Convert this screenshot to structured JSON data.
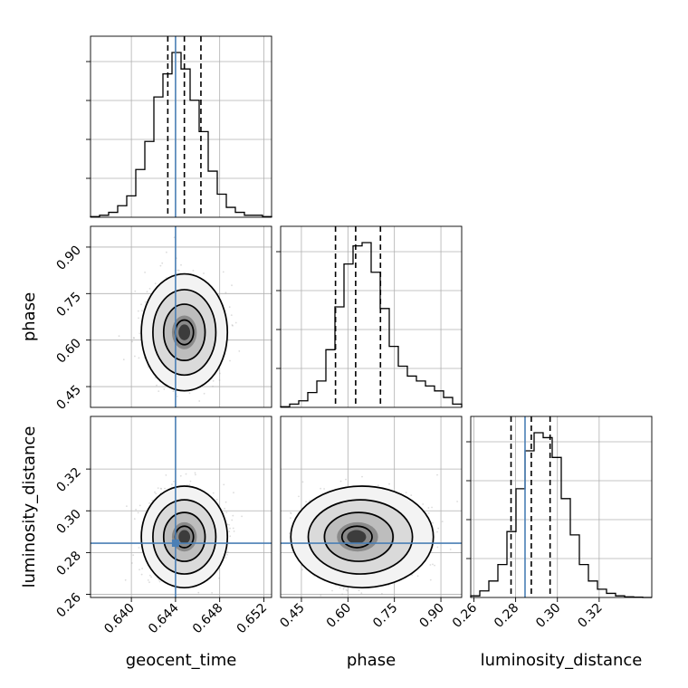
{
  "chart_data": {
    "type": "corner",
    "parameters": [
      "geocent_time",
      "phase",
      "luminosity_distance"
    ],
    "ranges": {
      "geocent_time": [
        0.6363,
        0.6527
      ],
      "phase": [
        0.383,
        0.967
      ],
      "luminosity_distance": [
        0.2585,
        0.3452
      ]
    },
    "truths": {
      "geocent_time": 0.644,
      "phase": null,
      "luminosity_distance": 0.2845
    },
    "quantiles": {
      "geocent_time": [
        0.6433,
        0.6448,
        0.6463
      ],
      "phase": [
        0.56,
        0.625,
        0.705
      ],
      "luminosity_distance": [
        0.2778,
        0.2875,
        0.2965
      ]
    },
    "ticks": {
      "geocent_time": [
        "0.640",
        "0.644",
        "0.648",
        "0.652"
      ],
      "phase": [
        "0.45",
        "0.60",
        "0.75",
        "0.90"
      ],
      "luminosity_distance": [
        "0.26",
        "0.28",
        "0.30",
        "0.32"
      ]
    },
    "histograms": {
      "geocent_time": [
        0.004,
        0.012,
        0.03,
        0.07,
        0.13,
        0.29,
        0.46,
        0.73,
        0.87,
        1.0,
        0.9,
        0.71,
        0.52,
        0.28,
        0.14,
        0.06,
        0.03,
        0.012,
        0.012,
        0.004
      ],
      "phase": [
        0.004,
        0.02,
        0.04,
        0.09,
        0.16,
        0.35,
        0.61,
        0.87,
        0.98,
        1.0,
        0.82,
        0.6,
        0.37,
        0.25,
        0.19,
        0.16,
        0.13,
        0.1,
        0.06,
        0.02
      ],
      "luminosity_distance": [
        0.01,
        0.04,
        0.1,
        0.2,
        0.4,
        0.66,
        0.89,
        1.0,
        0.97,
        0.85,
        0.6,
        0.38,
        0.2,
        0.1,
        0.05,
        0.025,
        0.01,
        0.004,
        0.002,
        0.0
      ]
    },
    "hist_max": {
      "geocent_time": 1.0,
      "phase": 1.0,
      "luminosity_distance": 1.0
    },
    "grid": true,
    "truth_color": "#4a7fb5",
    "contour_color": "#000000"
  }
}
